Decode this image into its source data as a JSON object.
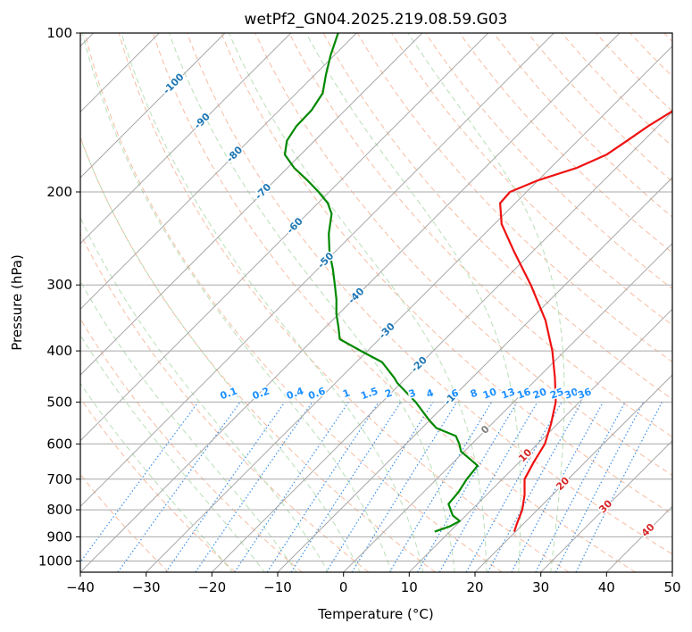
{
  "chart_data": {
    "type": "line",
    "subtype": "skew-T log-P diagram",
    "title": "wetPf2_GN04.2025.219.08.59.G03",
    "xlabel": "Temperature (°C)",
    "ylabel": "Pressure (hPa)",
    "xlim": [
      -40,
      50
    ],
    "ylim": [
      1050,
      100
    ],
    "y_scale": "log",
    "grid": true,
    "x_ticks": [
      -40,
      -30,
      -20,
      -10,
      0,
      10,
      20,
      30,
      40,
      50
    ],
    "y_ticks": [
      100,
      200,
      300,
      400,
      500,
      600,
      700,
      800,
      900,
      1000
    ],
    "series": [
      {
        "role": "temperature",
        "color": "#ee1111",
        "points": [
          {
            "p": 880,
            "t": 19.8
          },
          {
            "p": 850,
            "t": 19.0
          },
          {
            "p": 800,
            "t": 17.7
          },
          {
            "p": 750,
            "t": 15.8
          },
          {
            "p": 700,
            "t": 13.4
          },
          {
            "p": 650,
            "t": 12.2
          },
          {
            "p": 600,
            "t": 11.1
          },
          {
            "p": 550,
            "t": 9.0
          },
          {
            "p": 500,
            "t": 6.4
          },
          {
            "p": 450,
            "t": 2.6
          },
          {
            "p": 400,
            "t": -1.9
          },
          {
            "p": 350,
            "t": -7.6
          },
          {
            "p": 300,
            "t": -15.2
          },
          {
            "p": 260,
            "t": -22.7
          },
          {
            "p": 230,
            "t": -28.9
          },
          {
            "p": 210,
            "t": -32.3
          },
          {
            "p": 200,
            "t": -32.5
          },
          {
            "p": 190,
            "t": -30.0
          },
          {
            "p": 180,
            "t": -26.0
          },
          {
            "p": 170,
            "t": -23.5
          },
          {
            "p": 160,
            "t": -22.5
          },
          {
            "p": 150,
            "t": -21.5
          },
          {
            "p": 140,
            "t": -20.0
          },
          {
            "p": 130,
            "t": -17.5
          },
          {
            "p": 120,
            "t": -14.5
          },
          {
            "p": 110,
            "t": -11.5
          },
          {
            "p": 100,
            "t": -8.5
          }
        ]
      },
      {
        "role": "dewpoint",
        "color": "#008800",
        "points": [
          {
            "p": 880,
            "t": 7.7
          },
          {
            "p": 860,
            "t": 9.2
          },
          {
            "p": 840,
            "t": 9.9
          },
          {
            "p": 820,
            "t": 8.0
          },
          {
            "p": 780,
            "t": 5.6
          },
          {
            "p": 740,
            "t": 5.3
          },
          {
            "p": 700,
            "t": 4.6
          },
          {
            "p": 660,
            "t": 4.2
          },
          {
            "p": 640,
            "t": 1.9
          },
          {
            "p": 620,
            "t": -0.5
          },
          {
            "p": 600,
            "t": -1.9
          },
          {
            "p": 580,
            "t": -3.6
          },
          {
            "p": 560,
            "t": -7.8
          },
          {
            "p": 540,
            "t": -10.2
          },
          {
            "p": 500,
            "t": -14.9
          },
          {
            "p": 460,
            "t": -20.6
          },
          {
            "p": 450,
            "t": -21.8
          },
          {
            "p": 420,
            "t": -26.1
          },
          {
            "p": 400,
            "t": -31.0
          },
          {
            "p": 380,
            "t": -36.0
          },
          {
            "p": 360,
            "t": -38.1
          },
          {
            "p": 340,
            "t": -40.4
          },
          {
            "p": 320,
            "t": -42.5
          },
          {
            "p": 300,
            "t": -45.0
          },
          {
            "p": 280,
            "t": -47.7
          },
          {
            "p": 260,
            "t": -50.8
          },
          {
            "p": 240,
            "t": -53.7
          },
          {
            "p": 220,
            "t": -56.3
          },
          {
            "p": 210,
            "t": -58.5
          },
          {
            "p": 200,
            "t": -61.6
          },
          {
            "p": 190,
            "t": -65.1
          },
          {
            "p": 180,
            "t": -69.0
          },
          {
            "p": 170,
            "t": -72.4
          },
          {
            "p": 160,
            "t": -74.2
          },
          {
            "p": 150,
            "t": -75.0
          },
          {
            "p": 140,
            "t": -75.1
          },
          {
            "p": 130,
            "t": -76.0
          },
          {
            "p": 120,
            "t": -78.3
          },
          {
            "p": 110,
            "t": -80.6
          },
          {
            "p": 100,
            "t": -82.8
          }
        ]
      }
    ],
    "isotherm_labels": {
      "color": "#1f77b4",
      "points": [
        {
          "text": "-100",
          "p": 125,
          "t": -100
        },
        {
          "text": "-90",
          "p": 147,
          "t": -90
        },
        {
          "text": "-80",
          "p": 170,
          "t": -80
        },
        {
          "text": "-70",
          "p": 200,
          "t": -70
        },
        {
          "text": "-60",
          "p": 232,
          "t": -60
        },
        {
          "text": "-50",
          "p": 270,
          "t": -50
        },
        {
          "text": "-40",
          "p": 315,
          "t": -40
        },
        {
          "text": "-30",
          "p": 367,
          "t": -30
        },
        {
          "text": "-20",
          "p": 425,
          "t": -20
        },
        {
          "text": "-10",
          "p": 490,
          "t": -10
        }
      ]
    },
    "mixing_ratio_labels": {
      "color": "#1e90ff",
      "pressure": 500,
      "labels": [
        "0.1",
        "0.2",
        "0.4",
        "0.6",
        "1",
        "1.5",
        "2",
        "3",
        "4",
        "6",
        "8",
        "10",
        "13",
        "16",
        "20",
        "25",
        "30",
        "36"
      ],
      "t_at_500": [
        -43.3,
        -38.4,
        -33.2,
        -29.9,
        -25.4,
        -21.9,
        -19.0,
        -15.4,
        -12.7,
        -8.9,
        -6.0,
        -3.6,
        -0.8,
        1.6,
        4.0,
        6.6,
        8.8,
        10.8
      ]
    },
    "moist_adiabat_labels": {
      "color": "#d62728",
      "points": [
        {
          "text": "10",
          "p": 632,
          "t": 10
        },
        {
          "text": "20",
          "p": 715,
          "t": 20
        },
        {
          "text": "30",
          "p": 790,
          "t": 30
        },
        {
          "text": "40",
          "p": 875,
          "t": 40
        }
      ]
    },
    "zero_isotherm_label": {
      "text": "0",
      "p": 565,
      "t": 0,
      "color": "#808080"
    },
    "background_lines": {
      "isotherms_color": "#a8a8a8",
      "isobars_color": "#a8a8a8",
      "dry_adiabats_color": "#f4a582",
      "moist_adiabats_color": "#abd9a9",
      "mixing_ratio_color": "#3a8ee6",
      "dry_adiabat_thetas_C": [
        -30,
        -20,
        -10,
        0,
        10,
        20,
        30,
        40,
        50,
        60,
        70,
        80,
        90,
        100,
        110,
        120,
        130,
        140,
        150,
        160,
        170,
        180,
        190,
        200,
        210,
        220
      ],
      "moist_adiabat_T_C": [
        -20,
        -15,
        -10,
        -5,
        0,
        5,
        10,
        15,
        20,
        25,
        30
      ],
      "isotherm_T_C": [
        -140,
        -130,
        -120,
        -110,
        -100,
        -90,
        -80,
        -70,
        -60,
        -50,
        -40,
        -30,
        -20,
        -10,
        0,
        10,
        20,
        30,
        40,
        50
      ]
    }
  }
}
